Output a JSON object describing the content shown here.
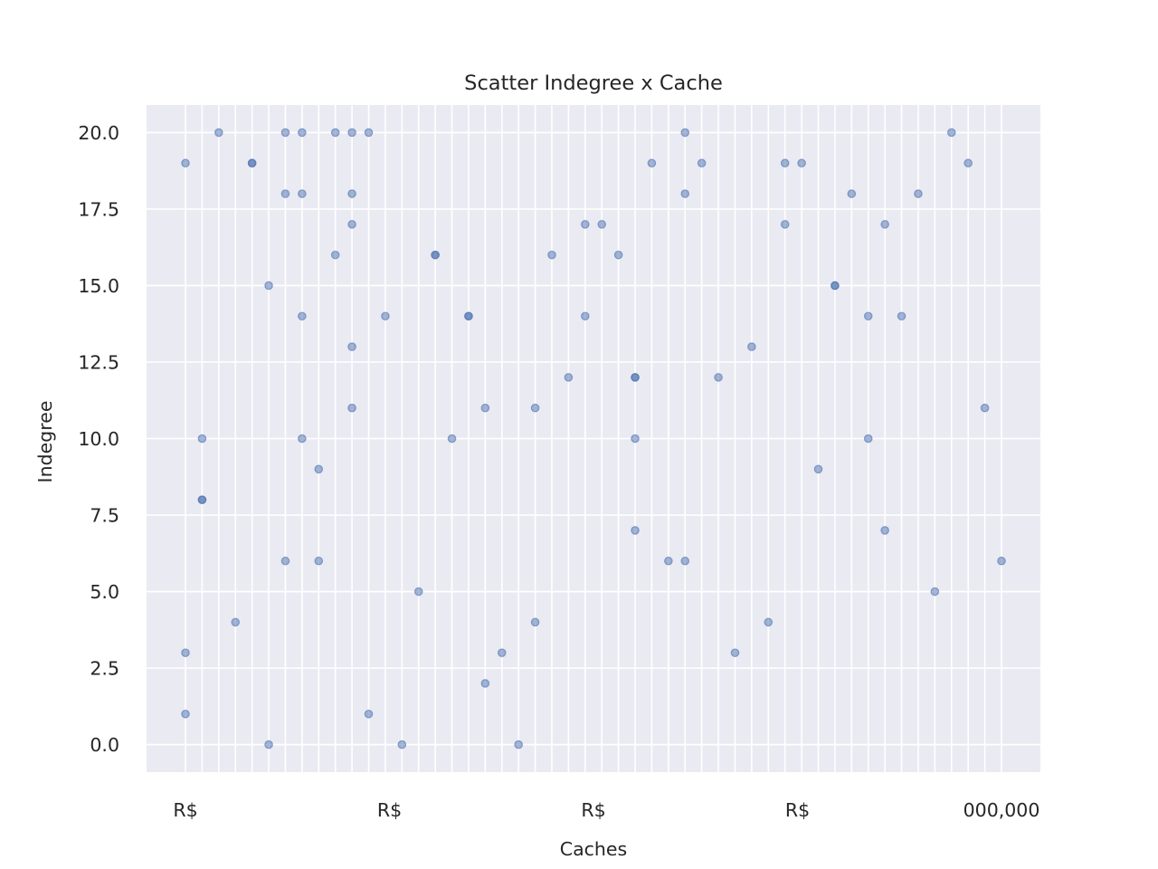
{
  "chart_data": {
    "type": "scatter",
    "title": "Scatter Indegree x Cache",
    "xlabel": "Caches",
    "ylabel": "Indegree",
    "ylim": [
      -0.9,
      20.9
    ],
    "yticks": [
      0.0,
      2.5,
      5.0,
      7.5,
      10.0,
      12.5,
      15.0,
      17.5,
      20.0
    ],
    "yticklabels": [
      "0.0",
      "2.5",
      "5.0",
      "7.5",
      "10.0",
      "12.5",
      "15.0",
      "17.5",
      "20.0"
    ],
    "grid": true,
    "legend": "none",
    "x_category_count": 50,
    "xticklabels_visible": [
      "R$",
      "R$",
      "R$",
      "R$",
      "000,000"
    ],
    "points": [
      {
        "x": 0,
        "y": 19
      },
      {
        "x": 0,
        "y": 3
      },
      {
        "x": 0,
        "y": 1
      },
      {
        "x": 1,
        "y": 10
      },
      {
        "x": 1,
        "y": 8
      },
      {
        "x": 1,
        "y": 8
      },
      {
        "x": 2,
        "y": 20
      },
      {
        "x": 3,
        "y": 4
      },
      {
        "x": 4,
        "y": 19
      },
      {
        "x": 4,
        "y": 19
      },
      {
        "x": 5,
        "y": 15
      },
      {
        "x": 5,
        "y": 0
      },
      {
        "x": 6,
        "y": 20
      },
      {
        "x": 6,
        "y": 18
      },
      {
        "x": 6,
        "y": 6
      },
      {
        "x": 7,
        "y": 20
      },
      {
        "x": 7,
        "y": 18
      },
      {
        "x": 7,
        "y": 14
      },
      {
        "x": 7,
        "y": 10
      },
      {
        "x": 8,
        "y": 9
      },
      {
        "x": 8,
        "y": 6
      },
      {
        "x": 9,
        "y": 20
      },
      {
        "x": 9,
        "y": 16
      },
      {
        "x": 10,
        "y": 20
      },
      {
        "x": 10,
        "y": 18
      },
      {
        "x": 10,
        "y": 17
      },
      {
        "x": 10,
        "y": 13
      },
      {
        "x": 10,
        "y": 11
      },
      {
        "x": 11,
        "y": 20
      },
      {
        "x": 11,
        "y": 1
      },
      {
        "x": 12,
        "y": 14
      },
      {
        "x": 13,
        "y": 0
      },
      {
        "x": 14,
        "y": 5
      },
      {
        "x": 15,
        "y": 16
      },
      {
        "x": 15,
        "y": 16
      },
      {
        "x": 16,
        "y": 10
      },
      {
        "x": 17,
        "y": 14
      },
      {
        "x": 17,
        "y": 14
      },
      {
        "x": 18,
        "y": 11
      },
      {
        "x": 18,
        "y": 2
      },
      {
        "x": 19,
        "y": 3
      },
      {
        "x": 20,
        "y": 0
      },
      {
        "x": 21,
        "y": 11
      },
      {
        "x": 21,
        "y": 4
      },
      {
        "x": 22,
        "y": 16
      },
      {
        "x": 23,
        "y": 12
      },
      {
        "x": 24,
        "y": 17
      },
      {
        "x": 24,
        "y": 14
      },
      {
        "x": 25,
        "y": 17
      },
      {
        "x": 26,
        "y": 16
      },
      {
        "x": 27,
        "y": 12
      },
      {
        "x": 27,
        "y": 12
      },
      {
        "x": 27,
        "y": 10
      },
      {
        "x": 27,
        "y": 7
      },
      {
        "x": 28,
        "y": 19
      },
      {
        "x": 29,
        "y": 6
      },
      {
        "x": 30,
        "y": 20
      },
      {
        "x": 30,
        "y": 18
      },
      {
        "x": 30,
        "y": 6
      },
      {
        "x": 31,
        "y": 19
      },
      {
        "x": 32,
        "y": 12
      },
      {
        "x": 33,
        "y": 3
      },
      {
        "x": 34,
        "y": 13
      },
      {
        "x": 35,
        "y": 4
      },
      {
        "x": 36,
        "y": 19
      },
      {
        "x": 36,
        "y": 17
      },
      {
        "x": 37,
        "y": 19
      },
      {
        "x": 38,
        "y": 9
      },
      {
        "x": 39,
        "y": 15
      },
      {
        "x": 39,
        "y": 15
      },
      {
        "x": 40,
        "y": 18
      },
      {
        "x": 41,
        "y": 14
      },
      {
        "x": 41,
        "y": 10
      },
      {
        "x": 42,
        "y": 17
      },
      {
        "x": 42,
        "y": 7
      },
      {
        "x": 43,
        "y": 14
      },
      {
        "x": 44,
        "y": 18
      },
      {
        "x": 45,
        "y": 5
      },
      {
        "x": 46,
        "y": 20
      },
      {
        "x": 47,
        "y": 19
      },
      {
        "x": 48,
        "y": 11
      },
      {
        "x": 49,
        "y": 6
      }
    ],
    "colors": {
      "background": "#eaeaf2",
      "grid": "#ffffff",
      "marker": "#4c72b0",
      "text": "#262626"
    }
  }
}
